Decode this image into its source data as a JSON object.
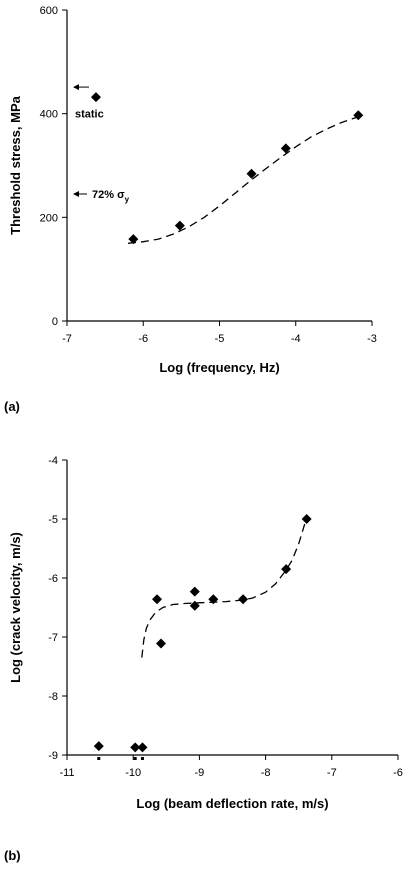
{
  "chart_data": [
    {
      "type": "scatter",
      "panel_label": "(a)",
      "xlabel": "Log (frequency, Hz)",
      "ylabel": "Threshold stress, MPa",
      "xlim": [
        -7,
        -3
      ],
      "ylim": [
        0,
        600
      ],
      "xticks": [
        -7,
        -6,
        -5,
        -4,
        -3
      ],
      "yticks": [
        0,
        200,
        400,
        600
      ],
      "tick_labels_x": [
        "-7",
        "-6",
        "-5",
        "-4",
        "-3"
      ],
      "tick_labels_y": [
        "0",
        "200",
        "400",
        "600"
      ],
      "grid": false,
      "series": [
        {
          "x": [
            -6.62,
            -6.13,
            -5.52,
            -4.58,
            -4.13,
            -3.18
          ],
          "y": [
            432,
            158,
            184,
            284,
            333,
            397
          ]
        }
      ],
      "fit_curve": {
        "style": "dashed",
        "x": [
          -6.2,
          -6.0,
          -5.8,
          -5.6,
          -5.4,
          -5.2,
          -5.0,
          -4.8,
          -4.6,
          -4.4,
          -4.2,
          -4.0,
          -3.8,
          -3.6,
          -3.4,
          -3.2
        ],
        "y": [
          150,
          153,
          158,
          168,
          182,
          200,
          222,
          246,
          270,
          293,
          315,
          336,
          355,
          370,
          383,
          393
        ]
      },
      "annotations": [
        {
          "text": "static",
          "x": -6.6,
          "y": 400
        },
        {
          "text": "72% σ",
          "subscript": "y",
          "x": -6.6,
          "y": 245
        }
      ]
    },
    {
      "type": "scatter",
      "panel_label": "(b)",
      "xlabel": "Log (beam deflection rate, m/s)",
      "ylabel": "Log (crack velocity, m/s)",
      "xlim": [
        -11,
        -6
      ],
      "ylim": [
        -9,
        -4
      ],
      "xticks": [
        -11,
        -10,
        -9,
        -8,
        -7,
        -6
      ],
      "yticks": [
        -9,
        -8,
        -7,
        -6,
        -5,
        -4
      ],
      "tick_labels_x": [
        "-11",
        "-10",
        "-9",
        "-8",
        "-7",
        "-6"
      ],
      "tick_labels_y": [
        "-9",
        "-8",
        "-7",
        "-6",
        "-5",
        "-4"
      ],
      "grid": false,
      "series": [
        {
          "x": [
            -10.52,
            -9.97,
            -9.86,
            -9.64,
            -9.58,
            -9.07,
            -9.07,
            -8.79,
            -8.34,
            -7.69,
            -7.38
          ],
          "y": [
            -8.85,
            -8.87,
            -8.87,
            -6.36,
            -7.11,
            -6.23,
            -6.47,
            -6.36,
            -6.36,
            -5.85,
            -5.0
          ]
        }
      ],
      "markers_below_axis": [
        -10.52,
        -9.97,
        -9.86
      ],
      "fit_curve": {
        "style": "dashed",
        "x": [
          -9.87,
          -9.84,
          -9.8,
          -9.74,
          -9.66,
          -9.55,
          -9.4,
          -9.2,
          -9.0,
          -8.8,
          -8.6,
          -8.4,
          -8.2,
          -8.0,
          -7.85,
          -7.7,
          -7.6,
          -7.5,
          -7.4
        ],
        "y": [
          -7.35,
          -7.05,
          -6.85,
          -6.7,
          -6.58,
          -6.5,
          -6.45,
          -6.43,
          -6.42,
          -6.41,
          -6.4,
          -6.38,
          -6.34,
          -6.24,
          -6.1,
          -5.88,
          -5.7,
          -5.42,
          -5.05
        ]
      }
    }
  ]
}
